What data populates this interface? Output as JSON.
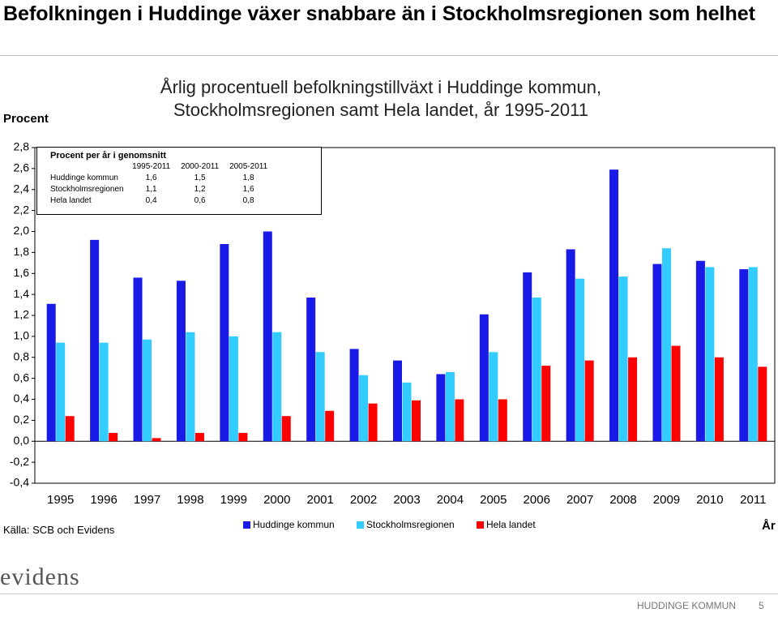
{
  "header": {
    "title": "Befolkningen i Huddinge växer snabbare än i Stockholmsregionen som helhet"
  },
  "chart_data": {
    "type": "bar",
    "title": "Årlig procentuell befolkningstillväxt i Huddinge kommun, Stockholmsregionen samt Hela landet, år 1995-2011",
    "y_label": "Procent",
    "x_label": "År",
    "categories": [
      "1995",
      "1996",
      "1997",
      "1998",
      "1999",
      "2000",
      "2001",
      "2002",
      "2003",
      "2004",
      "2005",
      "2006",
      "2007",
      "2008",
      "2009",
      "2010",
      "2011"
    ],
    "series": [
      {
        "name": "Huddinge kommun",
        "color": "#1a1ae6",
        "values": [
          1.31,
          1.92,
          1.56,
          1.53,
          1.88,
          2.0,
          1.37,
          0.88,
          0.77,
          0.64,
          1.21,
          1.61,
          1.83,
          2.59,
          1.69,
          1.72,
          1.64
        ]
      },
      {
        "name": "Stockholmsregionen",
        "color": "#33ccff",
        "values": [
          0.94,
          0.94,
          0.97,
          1.04,
          1.0,
          1.04,
          0.85,
          0.63,
          0.56,
          0.66,
          0.85,
          1.37,
          1.55,
          1.57,
          1.84,
          1.66,
          1.66
        ]
      },
      {
        "name": "Hela landet",
        "color": "#ff0000",
        "values": [
          0.24,
          0.08,
          0.03,
          0.08,
          0.08,
          0.24,
          0.29,
          0.36,
          0.39,
          0.4,
          0.4,
          0.72,
          0.77,
          0.8,
          0.91,
          0.8,
          0.71
        ]
      }
    ],
    "ylim": [
      -0.4,
      2.8
    ],
    "yticks": [
      {
        "value": -0.4,
        "label": "-0,4"
      },
      {
        "value": -0.2,
        "label": "-0,2"
      },
      {
        "value": 0,
        "label": "0,0"
      },
      {
        "value": 0.2,
        "label": "0,2"
      },
      {
        "value": 0.4,
        "label": "0,4"
      },
      {
        "value": 0.6,
        "label": "0,6"
      },
      {
        "value": 0.8,
        "label": "0,8"
      },
      {
        "value": 1.0,
        "label": "1,0"
      },
      {
        "value": 1.2,
        "label": "1,2"
      },
      {
        "value": 1.4,
        "label": "1,4"
      },
      {
        "value": 1.6,
        "label": "1,6"
      },
      {
        "value": 1.8,
        "label": "1,8"
      },
      {
        "value": 2.0,
        "label": "2,0"
      },
      {
        "value": 2.2,
        "label": "2,2"
      },
      {
        "value": 2.4,
        "label": "2,4"
      },
      {
        "value": 2.6,
        "label": "2,6"
      },
      {
        "value": 2.8,
        "label": "2,8"
      }
    ],
    "table": {
      "title": "Procent per år i genomsnitt",
      "columns": [
        "1995-2011",
        "2000-2011",
        "2005-2011"
      ],
      "rows": [
        [
          "Huddinge kommun",
          "1,6",
          "1,5",
          "1,8"
        ],
        [
          "Stockholmsregionen",
          "1,1",
          "1,2",
          "1,6"
        ],
        [
          "Hela landet",
          "0,4",
          "0,6",
          "0,8"
        ]
      ]
    }
  },
  "source": "Källa: SCB och Evidens",
  "footer": {
    "logo": "evidens",
    "organization": "HUDDINGE KOMMUN",
    "page": "5"
  }
}
